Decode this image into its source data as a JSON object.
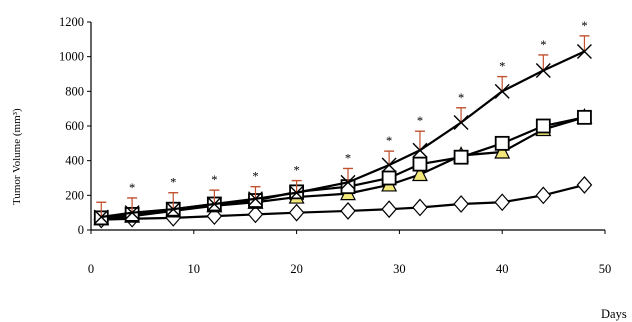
{
  "chart_data": {
    "type": "line",
    "title": "",
    "xlabel": "Days",
    "ylabel": "Tumor Volume (mm³)",
    "xlim": [
      0,
      50
    ],
    "ylim": [
      0,
      1200
    ],
    "x_ticks": [
      "0",
      "10",
      "20",
      "30",
      "40",
      "50"
    ],
    "y_ticks": [
      "0",
      "200",
      "400",
      "600",
      "800",
      "1000",
      "1200"
    ],
    "grid": false,
    "legend": "none",
    "significance_marker": "*",
    "significance_x": [
      4,
      8,
      12,
      16,
      20,
      25,
      29,
      32,
      36,
      40,
      44,
      48
    ],
    "series": [
      {
        "marker": "x",
        "color": "#000000",
        "error_color": "#c0502e",
        "x": [
          1,
          4,
          8,
          12,
          16,
          20,
          25,
          29,
          32,
          36,
          40,
          44,
          48
        ],
        "y": [
          75,
          100,
          120,
          150,
          180,
          215,
          275,
          375,
          460,
          620,
          800,
          920,
          1030
        ],
        "err": [
          85,
          85,
          95,
          80,
          70,
          70,
          80,
          80,
          110,
          85,
          85,
          90,
          90
        ]
      },
      {
        "marker": "square",
        "color": "#000000",
        "error_color": "#000000",
        "x": [
          1,
          4,
          8,
          12,
          16,
          20,
          25,
          29,
          32,
          36,
          40,
          44,
          48
        ],
        "y": [
          70,
          90,
          120,
          150,
          170,
          220,
          250,
          300,
          380,
          420,
          500,
          600,
          650
        ],
        "err": [
          0,
          0,
          0,
          0,
          0,
          0,
          0,
          0,
          0,
          0,
          0,
          0,
          0
        ]
      },
      {
        "marker": "triangle",
        "color": "#000000",
        "fill": "#f2e87a",
        "error_color": "#000000",
        "x": [
          1,
          4,
          8,
          12,
          16,
          20,
          25,
          29,
          32,
          36,
          40,
          44,
          48
        ],
        "y": [
          65,
          80,
          110,
          140,
          160,
          190,
          210,
          260,
          320,
          430,
          450,
          580,
          650
        ],
        "err": [
          0,
          0,
          0,
          0,
          0,
          0,
          0,
          0,
          0,
          0,
          0,
          0,
          0
        ]
      },
      {
        "marker": "diamond",
        "color": "#000000",
        "fill": "#ffffff",
        "error_color": "#000000",
        "x": [
          1,
          4,
          8,
          12,
          16,
          20,
          25,
          29,
          32,
          36,
          40,
          44,
          48
        ],
        "y": [
          60,
          65,
          70,
          80,
          90,
          100,
          110,
          120,
          130,
          150,
          160,
          200,
          260
        ],
        "err": [
          0,
          0,
          0,
          0,
          0,
          0,
          0,
          0,
          0,
          0,
          0,
          0,
          0
        ]
      }
    ]
  }
}
